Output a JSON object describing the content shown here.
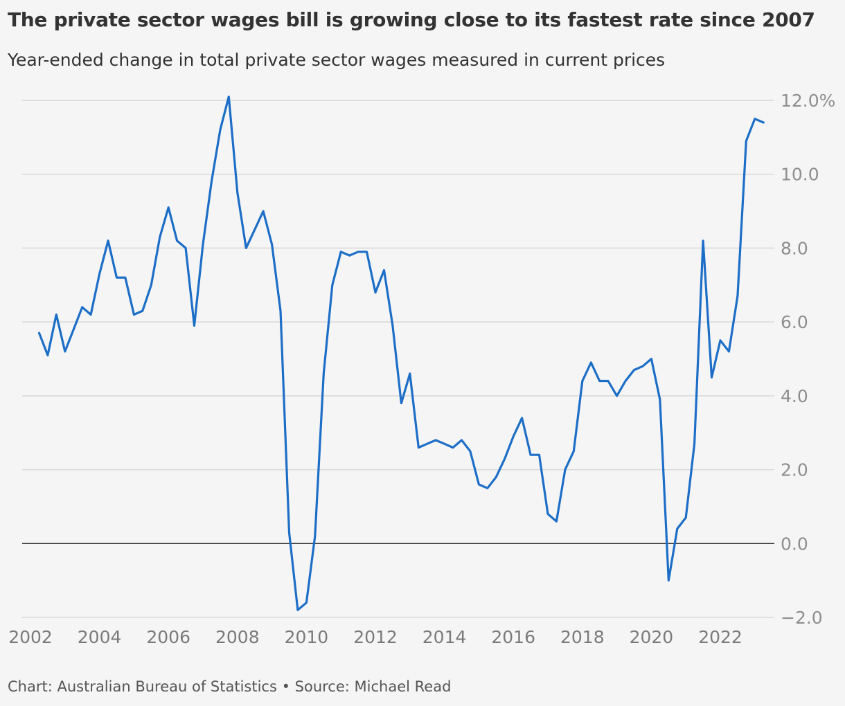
{
  "title": "The private sector wages bill is growing close to its fastest rate since 2007",
  "subtitle": "Year-ended change in total private sector wages measured in current prices",
  "footer": "Chart: Australian Bureau of Statistics • Source: Michael Read",
  "colors": {
    "line": "#1d6ec7",
    "grid": "#d8d8d8",
    "zero": "#333333",
    "background": "#f5f5f5"
  },
  "chart_data": {
    "type": "line",
    "title": "The private sector wages bill is growing close to its fastest rate since 2007",
    "subtitle": "Year-ended change in total private sector wages measured in current prices",
    "xlabel": "",
    "ylabel": "",
    "xlim": [
      2002,
      2023.25
    ],
    "ylim": [
      -2,
      12
    ],
    "y_ticks": [
      12,
      10,
      8,
      6,
      4,
      2,
      0,
      -2
    ],
    "y_tick_labels": [
      "12.0%",
      "10.0",
      "8.0",
      "6.0",
      "4.0",
      "2.0",
      "0.0",
      "−2.0"
    ],
    "x_ticks": [
      2002,
      2004,
      2006,
      2008,
      2010,
      2012,
      2014,
      2016,
      2018,
      2020,
      2022
    ],
    "x_tick_labels": [
      "2002",
      "2004",
      "2006",
      "2008",
      "2010",
      "2012",
      "2014",
      "2016",
      "2018",
      "2020",
      "2022"
    ],
    "grid": true,
    "series": [
      {
        "x": [
          2002.25,
          2002.5,
          2002.75,
          2003,
          2003.25,
          2003.5,
          2003.75,
          2004,
          2004.25,
          2004.5,
          2004.75,
          2005,
          2005.25,
          2005.5,
          2005.75,
          2006,
          2006.25,
          2006.5,
          2006.75,
          2007,
          2007.25,
          2007.5,
          2007.75,
          2008,
          2008.25,
          2008.5,
          2008.75,
          2009,
          2009.25,
          2009.5,
          2009.75,
          2010,
          2010.25,
          2010.5,
          2010.75,
          2011,
          2011.25,
          2011.5,
          2011.75,
          2012,
          2012.25,
          2012.5,
          2012.75,
          2013,
          2013.25,
          2013.5,
          2013.75,
          2014,
          2014.25,
          2014.5,
          2014.75,
          2015,
          2015.25,
          2015.5,
          2015.75,
          2016,
          2016.25,
          2016.5,
          2016.75,
          2017,
          2017.25,
          2017.5,
          2017.75,
          2018,
          2018.25,
          2018.5,
          2018.75,
          2019,
          2019.25,
          2019.5,
          2019.75,
          2020,
          2020.25,
          2020.5,
          2020.75,
          2021,
          2021.25,
          2021.5,
          2021.75,
          2022,
          2022.25,
          2022.5,
          2022.75,
          2023,
          2023.25
        ],
        "values": [
          5.7,
          5.1,
          6.2,
          5.2,
          5.8,
          6.4,
          6.2,
          7.3,
          8.2,
          7.2,
          7.2,
          6.2,
          6.3,
          7.0,
          8.3,
          9.1,
          8.2,
          8.0,
          5.9,
          8.1,
          9.8,
          11.2,
          12.1,
          9.5,
          8.0,
          8.5,
          9.0,
          8.1,
          6.3,
          0.3,
          -1.8,
          -1.6,
          0.2,
          4.6,
          7.0,
          7.9,
          7.8,
          7.9,
          7.9,
          6.8,
          7.4,
          5.9,
          3.8,
          4.6,
          2.6,
          2.7,
          2.8,
          2.7,
          2.6,
          2.8,
          2.5,
          1.6,
          1.5,
          1.8,
          2.3,
          2.9,
          3.4,
          2.4,
          2.4,
          0.8,
          0.6,
          2.0,
          2.5,
          4.4,
          4.9,
          4.4,
          4.4,
          4.0,
          4.4,
          4.7,
          4.8,
          5.0,
          3.9,
          -1.0,
          0.4,
          0.7,
          2.7,
          8.2,
          4.5,
          5.5,
          5.2,
          6.7,
          10.9,
          11.5,
          11.4
        ]
      }
    ]
  }
}
